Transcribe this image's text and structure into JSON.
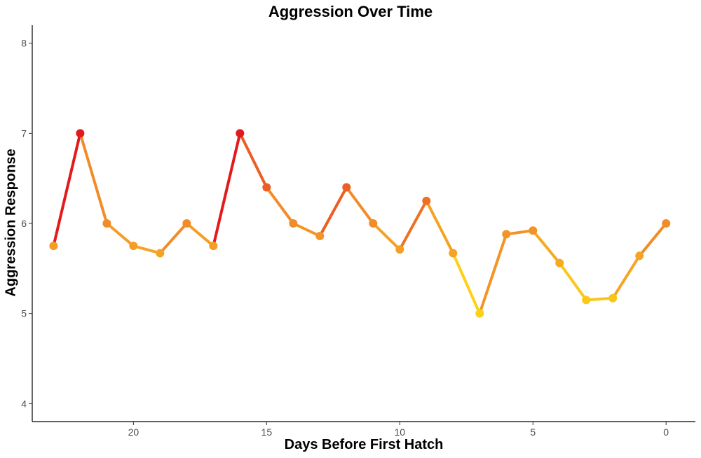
{
  "chart_data": {
    "type": "line",
    "title": "Aggression Over Time",
    "xlabel": "Days Before First Hatch",
    "ylabel": "Aggression Response",
    "x_reversed": true,
    "xlim": [
      23.8,
      -1.1
    ],
    "ylim": [
      3.8,
      8.2
    ],
    "x_ticks": [
      20,
      15,
      10,
      5,
      0
    ],
    "y_ticks": [
      4,
      5,
      6,
      7,
      8
    ],
    "grid": false,
    "legend": "none",
    "color_scale": {
      "low": "#FCD116",
      "mid": "#F28C28",
      "high": "#E31A1C",
      "low_value": 5,
      "high_value": 7
    },
    "x": [
      23,
      22,
      21,
      20,
      19,
      18,
      17,
      16,
      15,
      14,
      13,
      12,
      11,
      10,
      9,
      8,
      7,
      6,
      5,
      4,
      3,
      2,
      1,
      0
    ],
    "values": [
      5.75,
      7.0,
      6.0,
      5.75,
      5.67,
      6.0,
      5.75,
      7.0,
      6.4,
      6.0,
      5.86,
      6.4,
      6.0,
      5.71,
      6.25,
      5.67,
      5.0,
      5.88,
      5.92,
      5.56,
      5.15,
      5.17,
      5.64,
      6.0
    ]
  }
}
